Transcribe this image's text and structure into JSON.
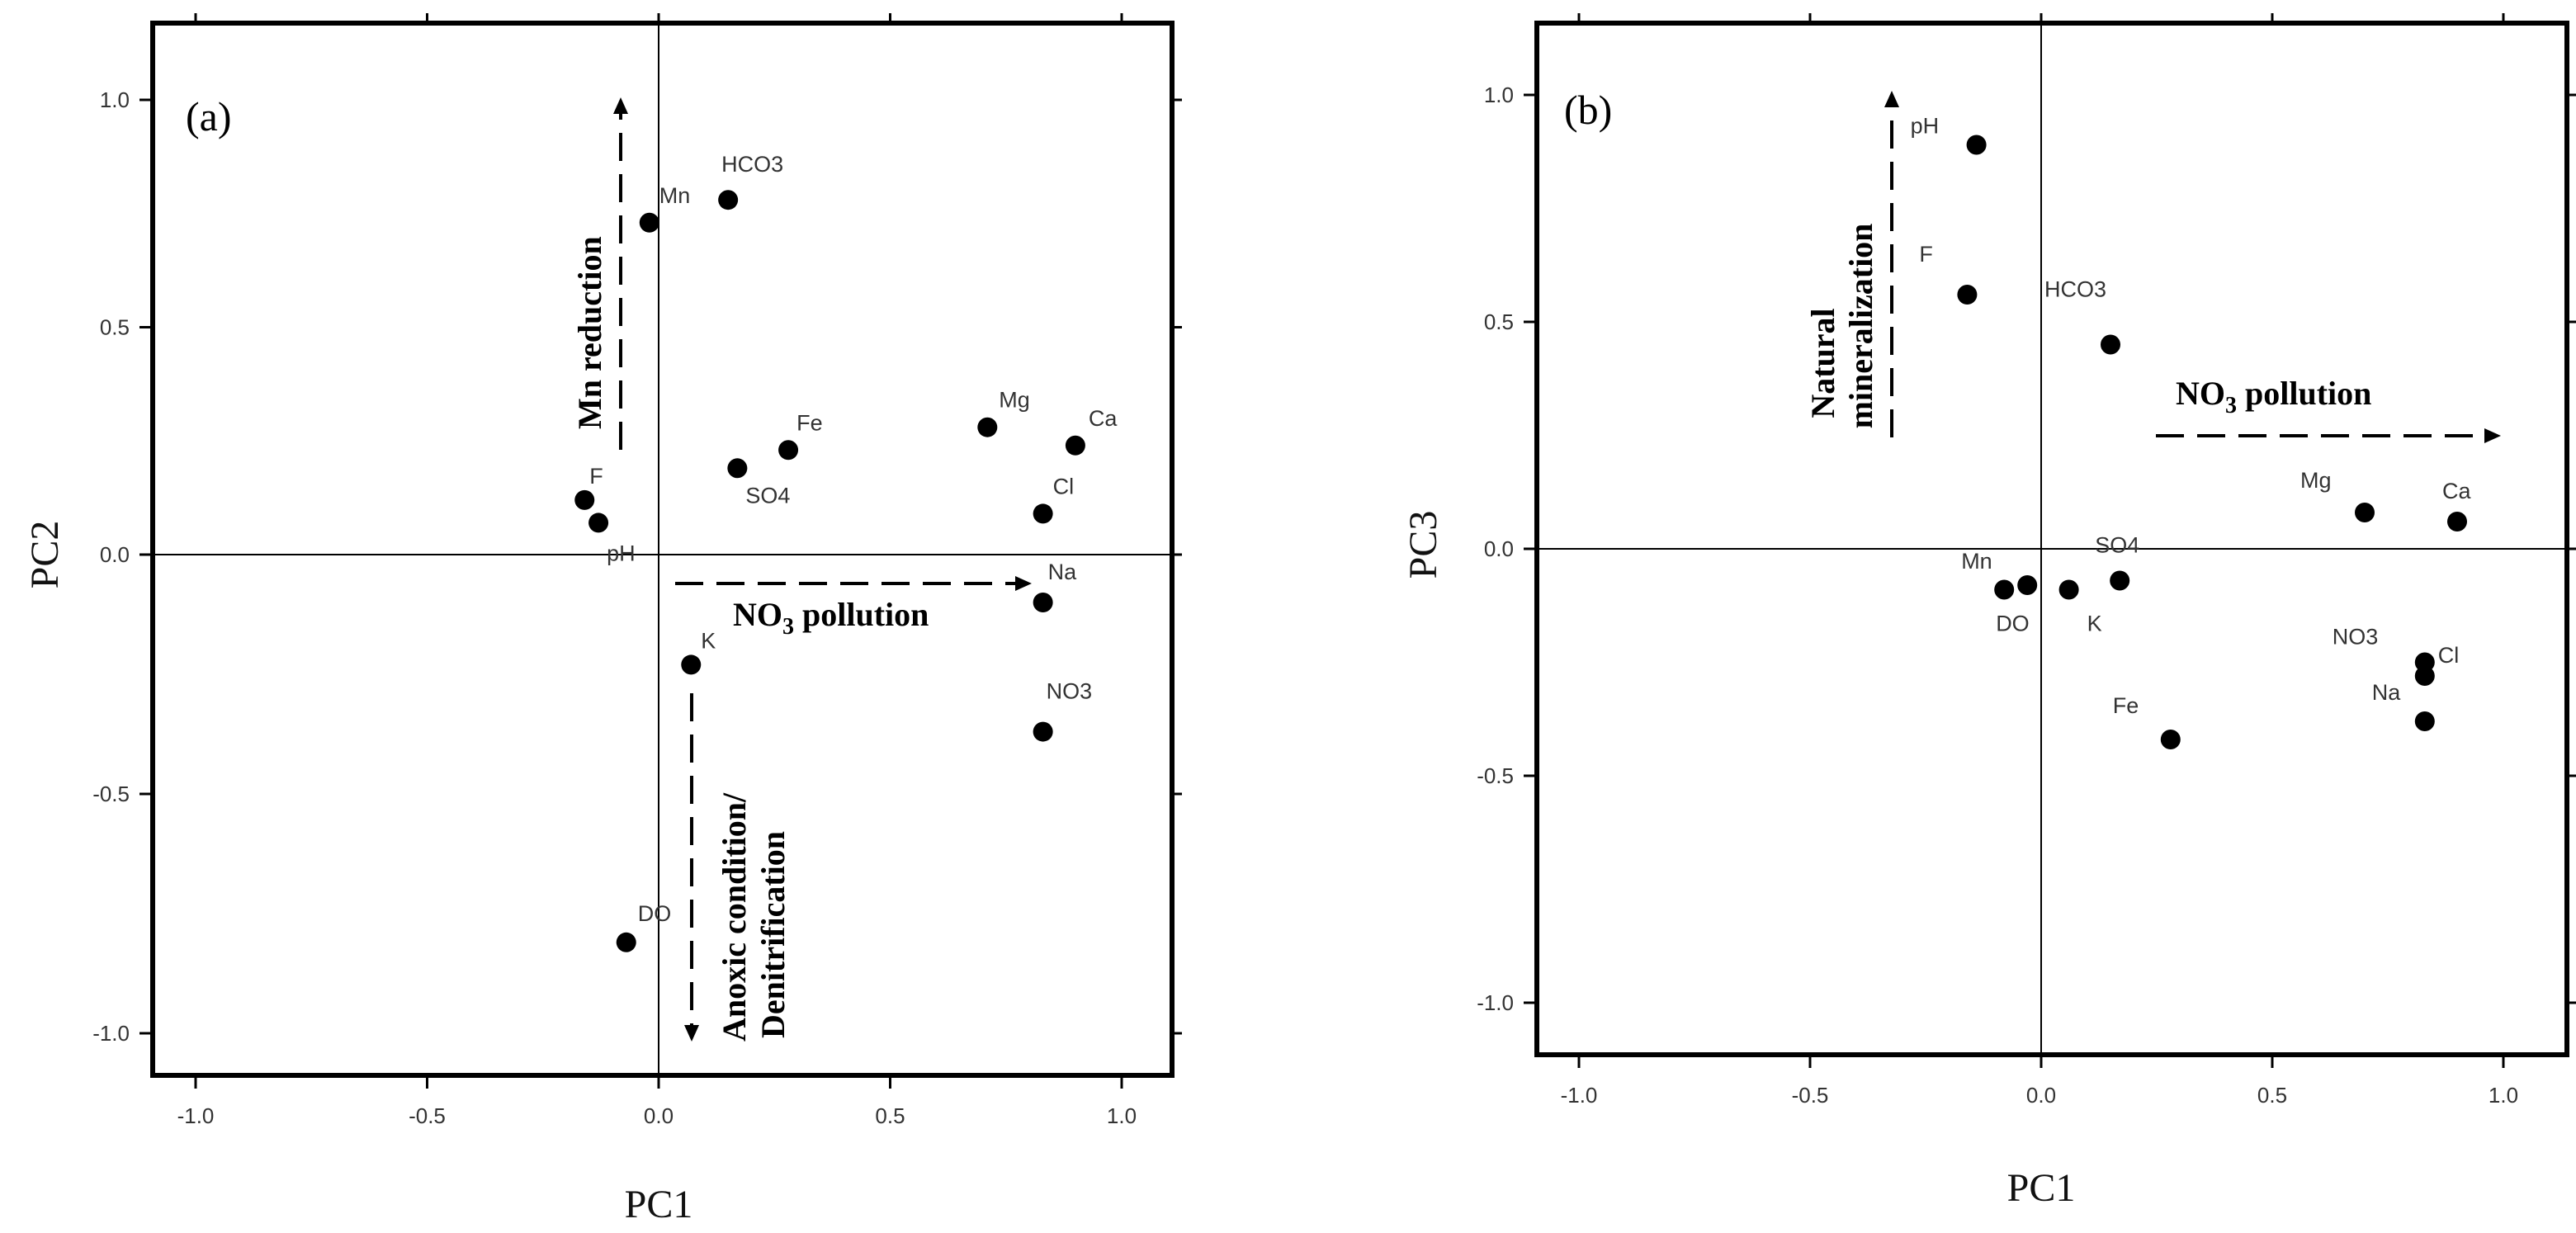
{
  "chart_data": [
    {
      "type": "scatter",
      "panel_label": "(a)",
      "xlabel": "PC1",
      "ylabel": "PC2",
      "xlim": [
        -1.1,
        1.1
      ],
      "ylim": [
        -1.1,
        1.1
      ],
      "xticks": [
        "-1.0",
        "-0.5",
        "0.0",
        "0.5",
        "1.0"
      ],
      "yticks": [
        "-1.0",
        "-0.5",
        "0.0",
        "0.5",
        "1.0"
      ],
      "points": [
        {
          "label": "HCO3",
          "x": 0.15,
          "y": 0.78
        },
        {
          "label": "Mn",
          "x": -0.02,
          "y": 0.73
        },
        {
          "label": "Mg",
          "x": 0.71,
          "y": 0.28
        },
        {
          "label": "Ca",
          "x": 0.9,
          "y": 0.24
        },
        {
          "label": "Fe",
          "x": 0.28,
          "y": 0.23
        },
        {
          "label": "SO4",
          "x": 0.17,
          "y": 0.19
        },
        {
          "label": "F",
          "x": -0.16,
          "y": 0.12
        },
        {
          "label": "pH",
          "x": -0.13,
          "y": 0.07
        },
        {
          "label": "Cl",
          "x": 0.83,
          "y": 0.09
        },
        {
          "label": "Na",
          "x": 0.83,
          "y": -0.1
        },
        {
          "label": "K",
          "x": 0.07,
          "y": -0.23
        },
        {
          "label": "NO3",
          "x": 0.83,
          "y": -0.37
        },
        {
          "label": "DO",
          "x": -0.07,
          "y": -0.81
        }
      ],
      "annotations": [
        {
          "text": "Mn reduction",
          "direction": "up"
        },
        {
          "text": "NO3 pollution",
          "main": "NO",
          "sub": "3",
          "rest": " pollution",
          "direction": "right"
        },
        {
          "text": "Anoxic condition/",
          "direction": "down"
        },
        {
          "text": "Denitrification",
          "direction": "down"
        }
      ]
    },
    {
      "type": "scatter",
      "panel_label": "(b)",
      "xlabel": "PC1",
      "ylabel": "PC3",
      "xlim": [
        -1.1,
        1.1
      ],
      "ylim": [
        -1.1,
        1.1
      ],
      "xticks": [
        "-1.0",
        "-0.5",
        "0.0",
        "0.5",
        "1.0"
      ],
      "yticks": [
        "-1.0",
        "-0.5",
        "0.0",
        "0.5",
        "1.0"
      ],
      "points": [
        {
          "label": "pH",
          "x": -0.14,
          "y": 0.89
        },
        {
          "label": "F",
          "x": -0.16,
          "y": 0.56
        },
        {
          "label": "HCO3",
          "x": 0.15,
          "y": 0.45
        },
        {
          "label": "Mg",
          "x": 0.7,
          "y": 0.08
        },
        {
          "label": "Ca",
          "x": 0.9,
          "y": 0.06
        },
        {
          "label": "SO4",
          "x": 0.17,
          "y": -0.07
        },
        {
          "label": "Mn",
          "x": -0.03,
          "y": -0.08
        },
        {
          "label": "DO",
          "x": -0.08,
          "y": -0.09
        },
        {
          "label": "K",
          "x": 0.06,
          "y": -0.09
        },
        {
          "label": "NO3",
          "x": 0.83,
          "y": -0.25
        },
        {
          "label": "Cl",
          "x": 0.83,
          "y": -0.28
        },
        {
          "label": "Na",
          "x": 0.83,
          "y": -0.38
        },
        {
          "label": "Fe",
          "x": 0.28,
          "y": -0.42
        }
      ],
      "annotations": [
        {
          "text": "Natural",
          "direction": "up"
        },
        {
          "text": "mineralization",
          "direction": "up"
        },
        {
          "text": "NO3 pollution",
          "main": "NO",
          "sub": "3",
          "rest": " pollution",
          "direction": "right"
        }
      ]
    }
  ]
}
